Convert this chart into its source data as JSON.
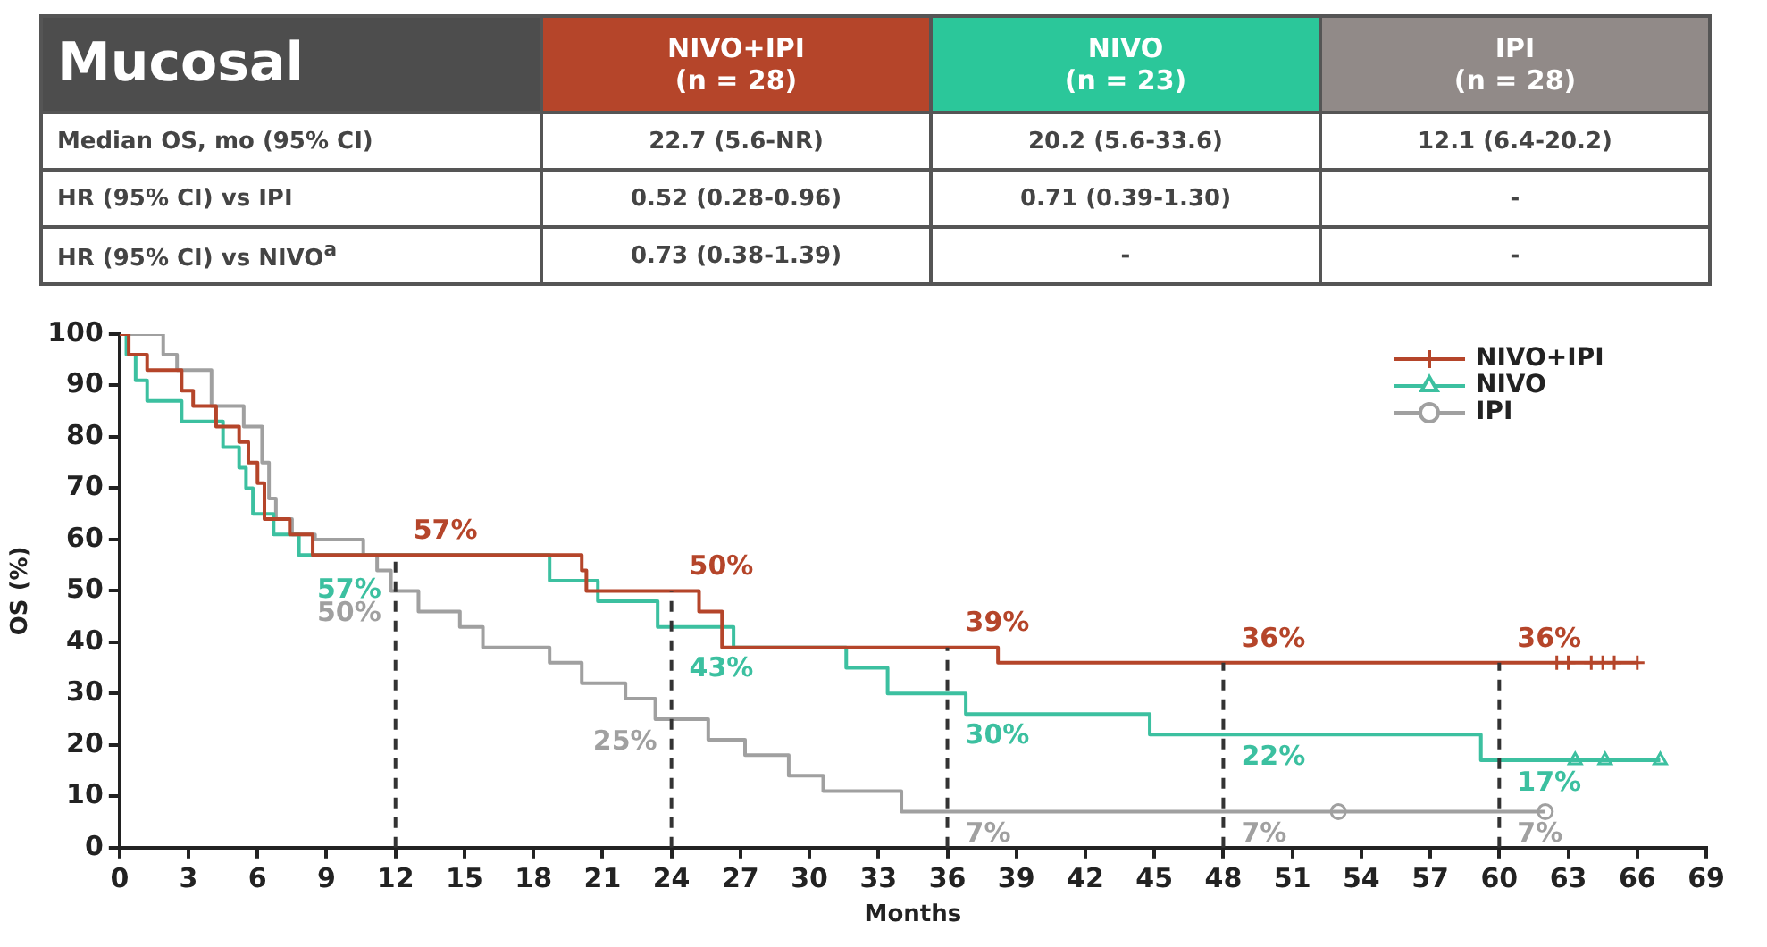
{
  "chart_data": [
    {
      "type": "other",
      "title": "Mucosal",
      "categories": [
        "NIVO+IPI\n(n = 28)",
        "NIVO\n(n = 23)",
        "IPI\n(n = 28)"
      ],
      "colors": [
        "#b5452a",
        "#2bc79a",
        "#918a88"
      ],
      "y_categories": [
        "Median OS, mo (95% CI)",
        "HR (95% CI) vs IPI",
        "HR (95% CI) vs NIVO$^{a}$"
      ],
      "cell_labels": [
        [
          "22.7 (5.6-NR)",
          "20.2 (5.6-33.6)",
          "12.1 (6.4-20.2)"
        ],
        [
          "0.52 (0.28-0.96)",
          "0.71 (0.39-1.30)",
          "-"
        ],
        [
          "0.73 (0.38-1.39)",
          "-",
          "-"
        ]
      ]
    },
    {
      "type": "step",
      "xlabel": "Months",
      "ylabel": "OS (%)",
      "xlim": [
        0,
        69
      ],
      "xticks": [
        0,
        3,
        6,
        9,
        12,
        15,
        18,
        21,
        24,
        27,
        30,
        33,
        36,
        39,
        42,
        45,
        48,
        51,
        54,
        57,
        60,
        63,
        66,
        69
      ],
      "ylim": [
        0,
        100
      ],
      "yticks": [
        0,
        10,
        20,
        30,
        40,
        50,
        60,
        70,
        80,
        90,
        100
      ],
      "grid": false,
      "legend": "top right",
      "ref_lines": [
        {
          "axis": "x",
          "value": 12,
          "line_style": "dashed"
        },
        {
          "axis": "x",
          "value": 24,
          "line_style": "dashed"
        },
        {
          "axis": "x",
          "value": 36,
          "line_style": "dashed"
        },
        {
          "axis": "x",
          "value": 48,
          "line_style": "dashed"
        },
        {
          "axis": "x",
          "value": 60,
          "line_style": "dashed"
        }
      ],
      "series": [
        {
          "name": "NIVO+IPI",
          "color": "#b5452a",
          "x": [
            0,
            0.4,
            1.2,
            2.7,
            3.2,
            4.2,
            5.2,
            5.6,
            6.0,
            6.3,
            7.4,
            8.4,
            12,
            20.1,
            20.3,
            24,
            25.2,
            26.2,
            36,
            38.2,
            48,
            60,
            66
          ],
          "values": [
            100,
            96,
            93,
            89,
            86,
            82,
            79,
            75,
            71,
            64,
            61,
            57,
            57,
            54,
            50,
            50,
            46,
            39,
            39,
            36,
            36,
            36,
            36
          ],
          "value_labels": [
            null,
            null,
            null,
            null,
            null,
            null,
            null,
            null,
            null,
            null,
            null,
            null,
            "57%",
            null,
            null,
            "50%",
            null,
            null,
            "39%",
            null,
            "36%",
            "36%",
            null
          ]
        },
        {
          "name": "NIVO",
          "color": "#3cc0a0",
          "x": [
            0,
            0.3,
            0.7,
            1.2,
            2.7,
            4.5,
            5.2,
            5.5,
            5.8,
            6.7,
            7.8,
            12,
            18.7,
            20.8,
            23.4,
            24,
            26.7,
            31.6,
            33.4,
            36,
            36.8,
            44.8,
            48,
            59.2,
            60,
            67
          ],
          "values": [
            100,
            96,
            91,
            87,
            83,
            78,
            74,
            70,
            65,
            61,
            57,
            57,
            52,
            48,
            43,
            43,
            39,
            35,
            30,
            30,
            26,
            22,
            22,
            17,
            17,
            17
          ],
          "value_labels": [
            null,
            null,
            null,
            null,
            null,
            null,
            null,
            null,
            null,
            null,
            null,
            "57%",
            null,
            null,
            null,
            "43%",
            null,
            null,
            null,
            "30%",
            null,
            null,
            "22%",
            null,
            "17%",
            null
          ]
        },
        {
          "name": "IPI",
          "color": "#a0a0a0",
          "x": [
            0,
            1.9,
            2.5,
            4.0,
            5.4,
            6.2,
            6.5,
            6.8,
            7.5,
            8.5,
            10.6,
            11.2,
            11.8,
            12,
            13.0,
            14.8,
            15.8,
            18.7,
            20.1,
            22.0,
            23.3,
            24,
            25.6,
            27.2,
            29.1,
            30.6,
            34.0,
            36,
            48,
            60,
            62
          ],
          "values": [
            100,
            96,
            93,
            86,
            82,
            75,
            68,
            64,
            61,
            60,
            57,
            54,
            50,
            50,
            46,
            43,
            39,
            36,
            32,
            29,
            25,
            25,
            21,
            18,
            14,
            11,
            7,
            7,
            7,
            7,
            7
          ],
          "value_labels": [
            null,
            null,
            null,
            null,
            null,
            null,
            null,
            null,
            null,
            null,
            null,
            null,
            null,
            "50%",
            null,
            null,
            null,
            null,
            null,
            null,
            null,
            "25%",
            null,
            null,
            null,
            null,
            null,
            "7%",
            "7%",
            "7%",
            null
          ]
        },
        {
          "type": "scatter",
          "color": "#b5452a",
          "marker": "cross",
          "x": [
            62.5,
            63,
            64,
            64.5,
            65,
            66
          ],
          "values": [
            36,
            36,
            36,
            36,
            36,
            36
          ]
        },
        {
          "type": "scatter",
          "color": "#3cc0a0",
          "marker": "triangle",
          "x": [
            63.3,
            64.6,
            67
          ],
          "values": [
            17,
            17,
            17
          ]
        },
        {
          "type": "scatter",
          "color": "#a0a0a0",
          "marker": "circle",
          "x": [
            53,
            62
          ],
          "values": [
            7,
            7
          ]
        }
      ]
    }
  ]
}
